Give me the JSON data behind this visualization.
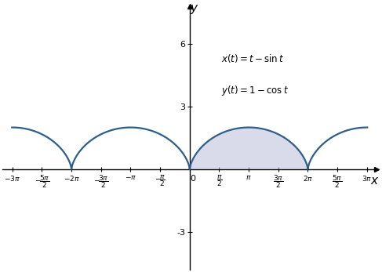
{
  "curve_color": "#2E5F8A",
  "fill_color": "#C0C4DF",
  "fill_alpha": 0.6,
  "line_width": 1.6,
  "xlim": [
    -9.95,
    9.95
  ],
  "ylim": [
    -4.8,
    7.8
  ],
  "yticks": [
    -3,
    3,
    6
  ],
  "xtick_vals": [
    -9.42477796,
    -7.85398163,
    -6.28318531,
    -4.71238898,
    -3.14159265,
    -1.5707963,
    0,
    1.5707963,
    3.14159265,
    4.71238898,
    6.28318531,
    7.85398163,
    9.42477796
  ]
}
